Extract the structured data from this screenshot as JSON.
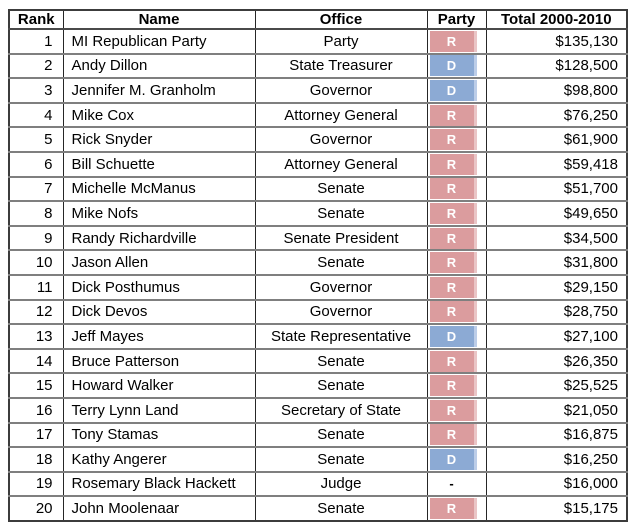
{
  "colors": {
    "republican_fill": "#db9c9e",
    "republican_edge": "#eac5c6",
    "democrat_fill": "#8caad4",
    "democrat_edge": "#bccde8",
    "grid_line": "#7f7f7f",
    "outer_border": "#3c3c3c",
    "header_text": "#000000",
    "body_text": "#000000",
    "badge_text": "#ffffff"
  },
  "chart_data": {
    "type": "table",
    "title": "",
    "columns": [
      {
        "key": "rank",
        "label": "Rank"
      },
      {
        "key": "name",
        "label": "Name"
      },
      {
        "key": "office",
        "label": "Office"
      },
      {
        "key": "party",
        "label": "Party"
      },
      {
        "key": "total",
        "label": "Total 2000-2010"
      }
    ],
    "rows": [
      {
        "rank": "1",
        "name": "MI Republican Party",
        "office": "Party",
        "party": "R",
        "total": "$135,130"
      },
      {
        "rank": "2",
        "name": "Andy Dillon",
        "office": "State Treasurer",
        "party": "D",
        "total": "$128,500"
      },
      {
        "rank": "3",
        "name": "Jennifer M. Granholm",
        "office": "Governor",
        "party": "D",
        "total": "$98,800"
      },
      {
        "rank": "4",
        "name": "Mike Cox",
        "office": "Attorney General",
        "party": "R",
        "total": "$76,250"
      },
      {
        "rank": "5",
        "name": "Rick Snyder",
        "office": "Governor",
        "party": "R",
        "total": "$61,900"
      },
      {
        "rank": "6",
        "name": "Bill Schuette",
        "office": "Attorney General",
        "party": "R",
        "total": "$59,418"
      },
      {
        "rank": "7",
        "name": "Michelle McManus",
        "office": "Senate",
        "party": "R",
        "total": "$51,700"
      },
      {
        "rank": "8",
        "name": "Mike Nofs",
        "office": "Senate",
        "party": "R",
        "total": "$49,650"
      },
      {
        "rank": "9",
        "name": "Randy Richardville",
        "office": "Senate President",
        "party": "R",
        "total": "$34,500"
      },
      {
        "rank": "10",
        "name": "Jason Allen",
        "office": "Senate",
        "party": "R",
        "total": "$31,800"
      },
      {
        "rank": "11",
        "name": "Dick Posthumus",
        "office": "Governor",
        "party": "R",
        "total": "$29,150"
      },
      {
        "rank": "12",
        "name": "Dick Devos",
        "office": "Governor",
        "party": "R",
        "total": "$28,750"
      },
      {
        "rank": "13",
        "name": "Jeff Mayes",
        "office": "State Representative",
        "party": "D",
        "total": "$27,100"
      },
      {
        "rank": "14",
        "name": "Bruce Patterson",
        "office": "Senate",
        "party": "R",
        "total": "$26,350"
      },
      {
        "rank": "15",
        "name": "Howard Walker",
        "office": "Senate",
        "party": "R",
        "total": "$25,525"
      },
      {
        "rank": "16",
        "name": "Terry Lynn Land",
        "office": "Secretary of State",
        "party": "R",
        "total": "$21,050"
      },
      {
        "rank": "17",
        "name": "Tony Stamas",
        "office": "Senate",
        "party": "R",
        "total": "$16,875"
      },
      {
        "rank": "18",
        "name": "Kathy Angerer",
        "office": "Senate",
        "party": "D",
        "total": "$16,250"
      },
      {
        "rank": "19",
        "name": "Rosemary Black Hackett",
        "office": "Judge",
        "party": "-",
        "total": "$16,000"
      },
      {
        "rank": "20",
        "name": "John Moolenaar",
        "office": "Senate",
        "party": "R",
        "total": "$15,175"
      }
    ]
  }
}
